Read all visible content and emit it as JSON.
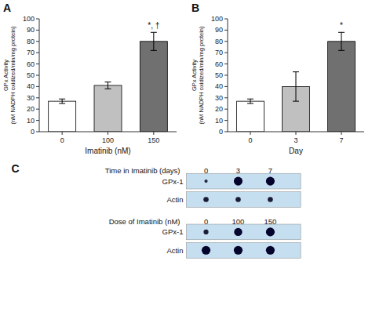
{
  "chart_data": [
    {
      "type": "bar",
      "title": "A",
      "categories": [
        "0",
        "100",
        "150"
      ],
      "values": [
        27,
        41,
        80
      ],
      "errors": [
        2,
        3,
        8
      ],
      "colors": [
        "#ffffff",
        "#c0c0c0",
        "#707070"
      ],
      "xlabel": "Imatinib (nM)",
      "ylabel": "GPx Activity\n(nM NADPH oxidized/min/mg protein)",
      "ylim": [
        0,
        100
      ],
      "yticks": [
        0,
        10,
        20,
        30,
        40,
        50,
        60,
        70,
        80,
        90,
        100
      ],
      "annotations": [
        {
          "text": "*, †",
          "category": "150"
        }
      ],
      "grid": false
    },
    {
      "type": "bar",
      "title": "B",
      "categories": [
        "0",
        "3",
        "7"
      ],
      "values": [
        27,
        40,
        80
      ],
      "errors": [
        2,
        13,
        8
      ],
      "colors": [
        "#ffffff",
        "#c0c0c0",
        "#707070"
      ],
      "xlabel": "Day",
      "ylabel": "GPx Activity\n(nM NADPH oxidized/min/mg protein)",
      "ylim": [
        0,
        100
      ],
      "yticks": [
        0,
        10,
        20,
        30,
        40,
        50,
        60,
        70,
        80,
        90,
        100
      ],
      "annotations": [
        {
          "text": "*",
          "category": "7"
        }
      ],
      "grid": false
    },
    {
      "type": "blot",
      "title": "C",
      "subtitle": "Time in Imatinib (days)",
      "categories": [
        "0",
        "3",
        "7"
      ],
      "color": "#c5dff0",
      "series": [
        {
          "name": "GPx-1",
          "values": [
            0.0,
            1.0,
            1.0
          ]
        },
        {
          "name": "Actin",
          "values": [
            0.35,
            0.35,
            0.35
          ]
        }
      ]
    },
    {
      "type": "blot",
      "subtitle": "Dose of Imatinib  (nM)",
      "categories": [
        "0",
        "100",
        "150"
      ],
      "color": "#c5dff0",
      "series": [
        {
          "name": "GPx-1",
          "values": [
            0.3,
            0.9,
            1.0
          ]
        },
        {
          "name": "Actin",
          "values": [
            1.0,
            1.0,
            1.0
          ]
        }
      ]
    }
  ]
}
